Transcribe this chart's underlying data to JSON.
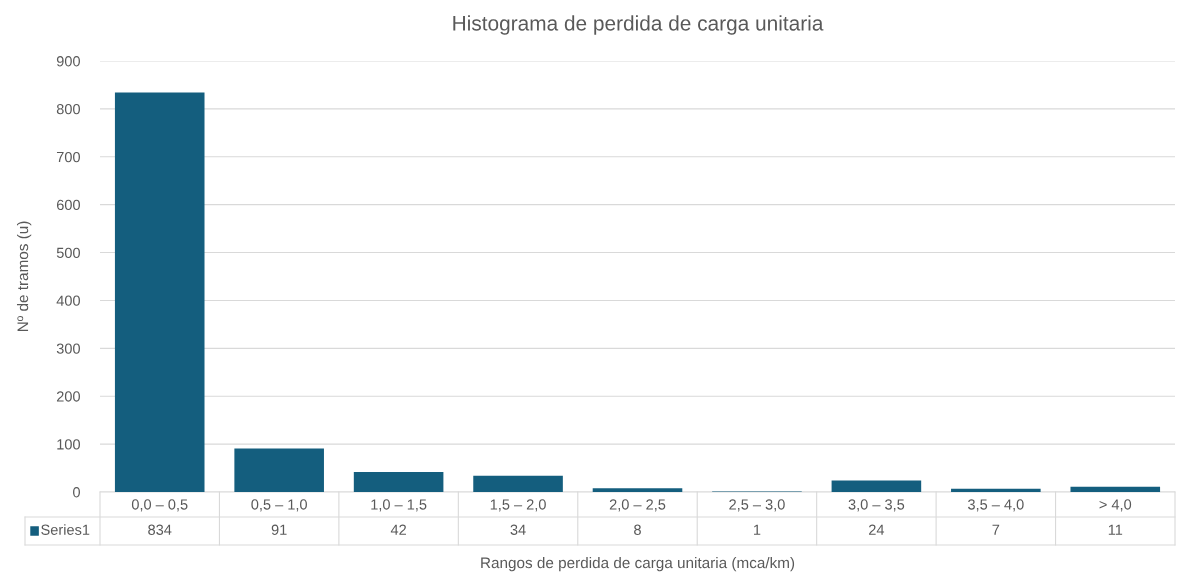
{
  "chart_data": {
    "type": "bar",
    "title": "Histograma de perdida de carga unitaria",
    "xlabel": "Rangos de perdida de carga unitaria (mca/km)",
    "ylabel": "Nº de tramos (u)",
    "categories": [
      "0,0 – 0,5",
      "0,5 – 1,0",
      "1,0 – 1,5",
      "1,5 – 2,0",
      "2,0 – 2,5",
      "2,5 – 3,0",
      "3,0 – 3,5",
      "3,5 – 4,0",
      "> 4,0"
    ],
    "series": [
      {
        "name": "Series1",
        "color": "#145e7e",
        "values": [
          834,
          91,
          42,
          34,
          8,
          1,
          24,
          7,
          11
        ]
      }
    ],
    "ylim": [
      0,
      900
    ],
    "yticks": [
      0,
      100,
      200,
      300,
      400,
      500,
      600,
      700,
      800,
      900
    ],
    "grid": "y",
    "data_labels": true
  }
}
